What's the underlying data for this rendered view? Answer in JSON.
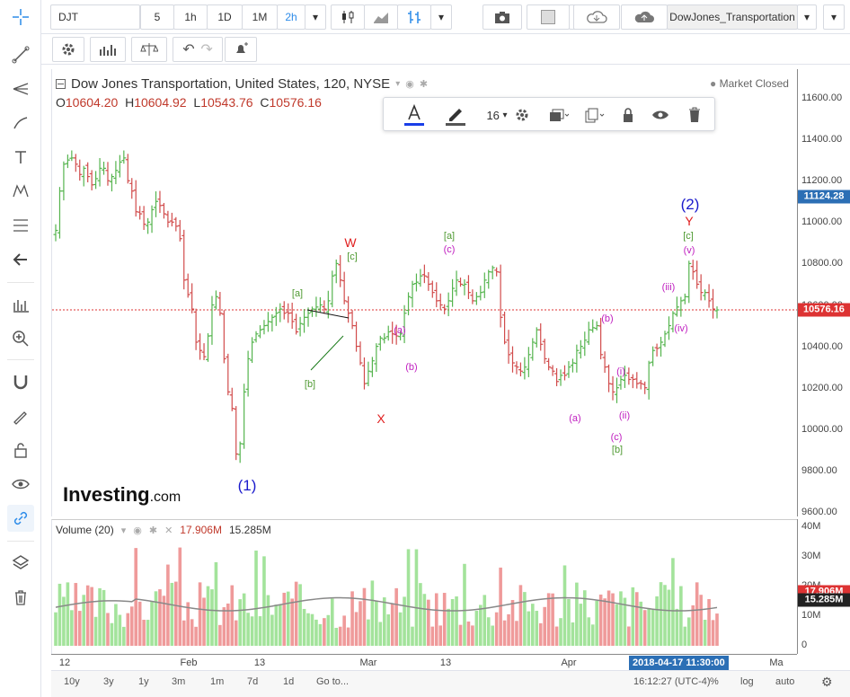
{
  "toolbar": {
    "symbol": "DJT",
    "intervals": [
      "5",
      "1h",
      "1D",
      "1M",
      "2h"
    ],
    "active_interval": "2h",
    "chart_name": "DowJones_Transportation"
  },
  "chart": {
    "title": "Dow Jones Transportation, United States, 120, NYSE",
    "ohlc": {
      "o_label": "O",
      "o": "10604.20",
      "h_label": "H",
      "h": "10604.92",
      "l_label": "L",
      "l": "10543.76",
      "c_label": "C",
      "c": "10576.16"
    },
    "market_status": "Market Closed",
    "draw_toolbar": {
      "font_size": "16"
    },
    "watermark_main": "Investing",
    "watermark_suffix": ".com",
    "y_ticks": [
      "11600.00",
      "11400.00",
      "11200.00",
      "11000.00",
      "10800.00",
      "10600.00",
      "10400.00",
      "10200.00",
      "10000.00",
      "9800.00",
      "9600.00"
    ],
    "price_label_high": "11124.28",
    "price_label_last": "10576.16",
    "wave_labels": [
      {
        "t": "(1)",
        "color": "#1a1acc"
      },
      {
        "t": "[a]",
        "color": "#4f9a32"
      },
      {
        "t": "[b]",
        "color": "#4f9a32"
      },
      {
        "t": "[c]",
        "color": "#4f9a32"
      },
      {
        "t": "W",
        "color": "#e02020"
      },
      {
        "t": "X",
        "color": "#e02020"
      },
      {
        "t": "(a)",
        "color": "#c020c0"
      },
      {
        "t": "(b)",
        "color": "#c020c0"
      },
      {
        "t": "[a]",
        "color": "#4f9a32"
      },
      {
        "t": "(c)",
        "color": "#c020c0"
      },
      {
        "t": "(a)",
        "color": "#c020c0"
      },
      {
        "t": "(b)",
        "color": "#c020c0"
      },
      {
        "t": "(i)",
        "color": "#c020c0"
      },
      {
        "t": "(ii)",
        "color": "#c020c0"
      },
      {
        "t": "(c)",
        "color": "#c020c0"
      },
      {
        "t": "[b]",
        "color": "#4f9a32"
      },
      {
        "t": "(iii)",
        "color": "#c020c0"
      },
      {
        "t": "(iv)",
        "color": "#c020c0"
      },
      {
        "t": "(v)",
        "color": "#c020c0"
      },
      {
        "t": "[c]",
        "color": "#4f9a32"
      },
      {
        "t": "Y",
        "color": "#e02020"
      },
      {
        "t": "(2)",
        "color": "#1a1acc"
      }
    ]
  },
  "volume": {
    "label": "Volume (20)",
    "v1": "17.906M",
    "v2": "15.285M",
    "y_ticks": [
      "40M",
      "30M",
      "20M",
      "10M",
      "0"
    ]
  },
  "x_ticks": [
    "12",
    "Feb",
    "13",
    "Mar",
    "13",
    "Apr",
    "Ma"
  ],
  "x_cursor_label": "2018-04-17 11:30:00",
  "bottom": {
    "ranges": [
      "10y",
      "3y",
      "1y",
      "3m",
      "1m",
      "7d",
      "1d",
      "Go to..."
    ],
    "clock": "16:12:27 (UTC-4)",
    "options": [
      "%",
      "log",
      "auto"
    ]
  },
  "colors": {
    "up": "#55b44e",
    "down": "#d14b4b",
    "vol_up": "#a3e39b",
    "vol_down": "#ef9a9a",
    "accent": "#2c8be9"
  },
  "chart_data": {
    "type": "candlestick",
    "title": "Dow Jones Transportation, United States, 120, NYSE",
    "x_labels": [
      "12",
      "Feb",
      "13",
      "Mar",
      "13",
      "Apr",
      "Ma"
    ],
    "ylim": [
      9600,
      11700
    ],
    "closes": [
      10960,
      11150,
      11280,
      11300,
      11310,
      11280,
      11230,
      11260,
      11220,
      11180,
      11210,
      11260,
      11260,
      11200,
      11220,
      11250,
      11290,
      11310,
      11200,
      11150,
      11050,
      11040,
      10990,
      11000,
      11060,
      11100,
      11080,
      11040,
      11000,
      11000,
      10980,
      10920,
      10720,
      10650,
      10580,
      10420,
      10380,
      10350,
      10450,
      10600,
      10640,
      10560,
      10340,
      10180,
      10100,
      9880,
      9930,
      10180,
      10340,
      10420,
      10460,
      10480,
      10500,
      10520,
      10540,
      10560,
      10580,
      10560,
      10560,
      10520,
      10470,
      10510,
      10540,
      10560,
      10580,
      10590,
      10600,
      10580,
      10620,
      10740,
      10800,
      10720,
      10620,
      10560,
      10500,
      10400,
      10320,
      10220,
      10280,
      10330,
      10400,
      10440,
      10440,
      10470,
      10460,
      10450,
      10460,
      10560,
      10640,
      10700,
      10710,
      10740,
      10740,
      10700,
      10660,
      10620,
      10600,
      10580,
      10620,
      10680,
      10720,
      10700,
      10700,
      10660,
      10620,
      10640,
      10660,
      10720,
      10760,
      10780,
      10760,
      10540,
      10420,
      10360,
      10320,
      10300,
      10280,
      10300,
      10360,
      10420,
      10480,
      10410,
      10340,
      10300,
      10280,
      10230,
      10260,
      10260,
      10300,
      10320,
      10380,
      10400,
      10430,
      10480,
      10490,
      10500,
      10360,
      10300,
      10220,
      10180,
      10200,
      10240,
      10260,
      10240,
      10240,
      10220,
      10220,
      10200,
      10320,
      10380,
      10390,
      10420,
      10460,
      10500,
      10560,
      10590,
      10620,
      10640,
      10800,
      10760,
      10700,
      10660,
      10660,
      10620,
      10580,
      10576
    ],
    "volume_last": 17.906,
    "volume_ma": 15.285,
    "volume_ylim": [
      0,
      42
    ]
  }
}
